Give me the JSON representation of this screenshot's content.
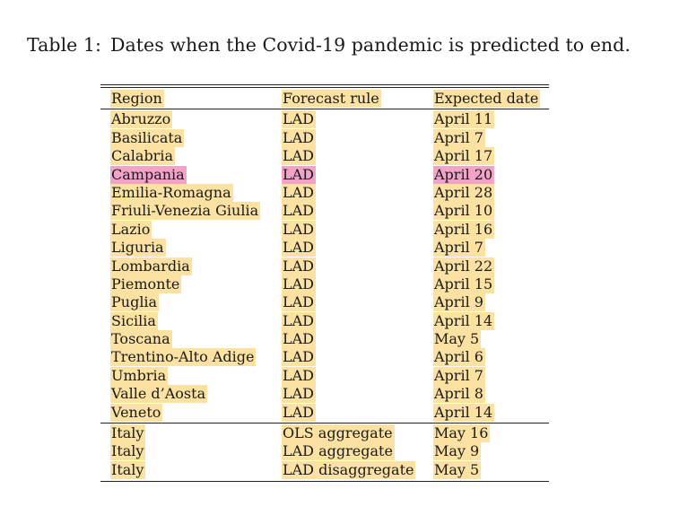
{
  "caption": {
    "label": "Table 1:",
    "text": "Dates when the Covid-19 pandemic is predicted to end."
  },
  "table": {
    "headers": [
      "Region",
      "Forecast rule",
      "Expected date"
    ],
    "rows": [
      [
        "Abruzzo",
        "LAD",
        "April 11"
      ],
      [
        "Basilicata",
        "LAD",
        "April 7"
      ],
      [
        "Calabria",
        "LAD",
        "April 17"
      ],
      [
        "Campania",
        "LAD",
        "April 20"
      ],
      [
        "Emilia-Romagna",
        "LAD",
        "April 28"
      ],
      [
        "Friuli-Venezia Giulia",
        "LAD",
        "April 10"
      ],
      [
        "Lazio",
        "LAD",
        "April 16"
      ],
      [
        "Liguria",
        "LAD",
        "April 7"
      ],
      [
        "Lombardia",
        "LAD",
        "April 22"
      ],
      [
        "Piemonte",
        "LAD",
        "April 15"
      ],
      [
        "Puglia",
        "LAD",
        "April 9"
      ],
      [
        "Sicilia",
        "LAD",
        "April 14"
      ],
      [
        "Toscana",
        "LAD",
        "May 5"
      ],
      [
        "Trentino-Alto Adige",
        "LAD",
        "April 6"
      ],
      [
        "Umbria",
        "LAD",
        "April 7"
      ],
      [
        "Valle d’Aosta",
        "LAD",
        "April 8"
      ],
      [
        "Veneto",
        "LAD",
        "April 14"
      ]
    ],
    "aggregate_rows": [
      [
        "Italy",
        "OLS aggregate",
        "May 16"
      ],
      [
        "Italy",
        "LAD aggregate",
        "May 9"
      ],
      [
        "Italy",
        "LAD disaggregate",
        "May 5"
      ]
    ]
  },
  "highlight_colors": {
    "yellow": "#fbe2a3",
    "pink": "#f3a2c8"
  }
}
